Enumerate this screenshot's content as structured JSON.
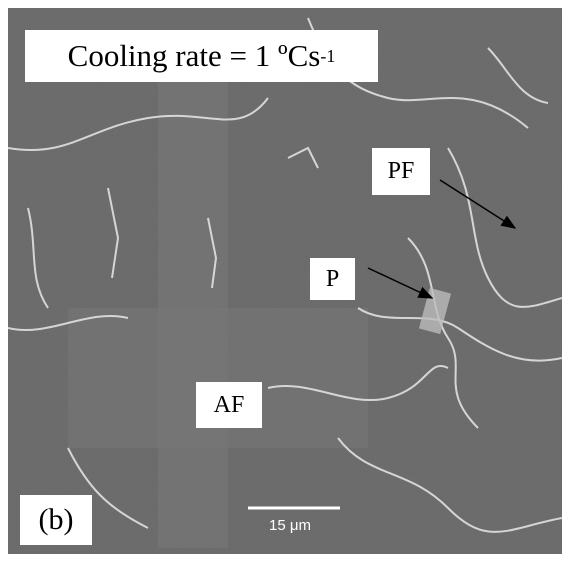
{
  "title": {
    "text": "Cooling rate = 1 ºCs",
    "superscript": "-1"
  },
  "labels": [
    "PF",
    "P",
    "AF"
  ],
  "panel": "(b)",
  "scale_bar": "15 μm"
}
